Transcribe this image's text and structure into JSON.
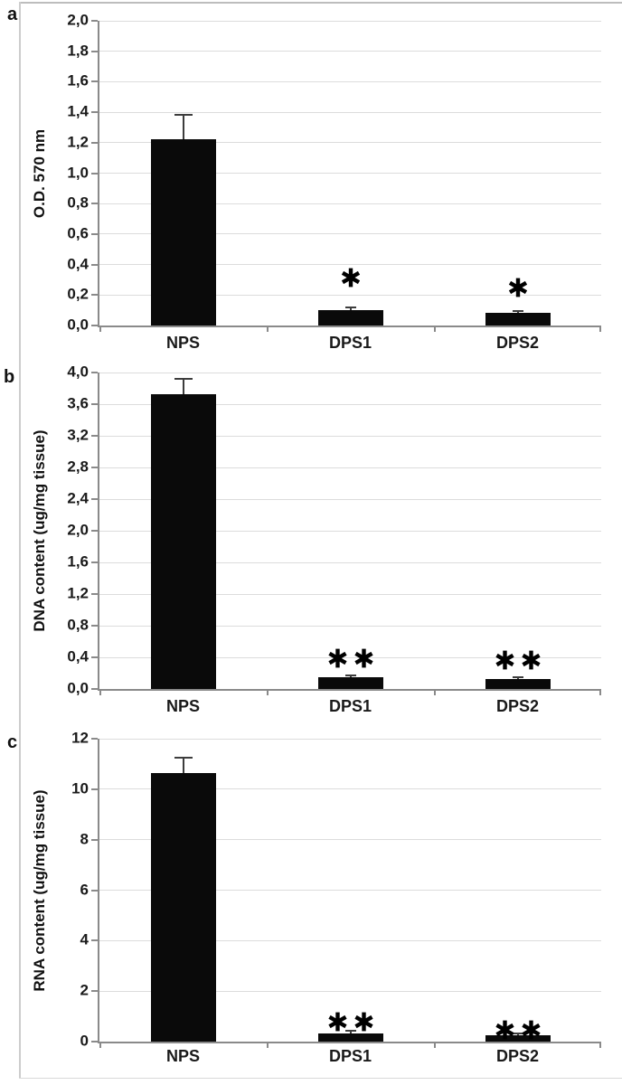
{
  "figure": {
    "description": "Three stacked bar chart panels comparing NPS vs DPS1 and DPS2",
    "panel_letters": [
      "a",
      "b",
      "c"
    ],
    "colors": {
      "bar": "#0a0a0a",
      "gridline": "#dcdcdc",
      "axis": "#8a8a8a",
      "error_bar": "#3d3d3d",
      "panel_border": "#bdbdbd",
      "background": "#ffffff",
      "text": "#111111"
    }
  },
  "chart_data": [
    {
      "type": "bar",
      "panel_label": "a",
      "ylabel": "O.D. 570 nm",
      "xlabel": "",
      "categories": [
        "NPS",
        "DPS1",
        "DPS2"
      ],
      "values": [
        1.22,
        0.1,
        0.085
      ],
      "errors": [
        0.16,
        0.015,
        0.012
      ],
      "significance": [
        "",
        "*",
        "*"
      ],
      "ylim": [
        0.0,
        2.0
      ],
      "ytick_step": 0.2,
      "ytick_labels": [
        "2,0",
        "1,8",
        "1,6",
        "1,4",
        "1,2",
        "1,0",
        "0,8",
        "0,6",
        "0,4",
        "0,2",
        "0,0"
      ],
      "grid": true,
      "legend": "none",
      "bar_color": "#0a0a0a"
    },
    {
      "type": "bar",
      "panel_label": "b",
      "ylabel": "DNA content (ug/mg tissue)",
      "xlabel": "",
      "categories": [
        "NPS",
        "DPS1",
        "DPS2"
      ],
      "values": [
        3.72,
        0.15,
        0.13
      ],
      "errors": [
        0.19,
        0.025,
        0.02
      ],
      "significance": [
        "",
        "**",
        "**"
      ],
      "ylim": [
        0.0,
        4.0
      ],
      "ytick_step": 0.4,
      "ytick_labels": [
        "4,0",
        "3,6",
        "3,2",
        "2,8",
        "2,4",
        "2,0",
        "1,6",
        "1,2",
        "0,8",
        "0,4",
        "0,0"
      ],
      "grid": true,
      "legend": "none",
      "bar_color": "#0a0a0a"
    },
    {
      "type": "bar",
      "panel_label": "c",
      "ylabel": "RNA content (ug/mg tissue)",
      "xlabel": "",
      "categories": [
        "NPS",
        "DPS1",
        "DPS2"
      ],
      "values": [
        10.65,
        0.33,
        0.25
      ],
      "errors": [
        0.6,
        0.1,
        0.06
      ],
      "significance": [
        "",
        "**",
        "**"
      ],
      "ylim": [
        0,
        12
      ],
      "ytick_step": 2,
      "ytick_labels": [
        "12",
        "10",
        "8",
        "6",
        "4",
        "2",
        "0"
      ],
      "grid": true,
      "legend": "none",
      "bar_color": "#0a0a0a"
    }
  ]
}
